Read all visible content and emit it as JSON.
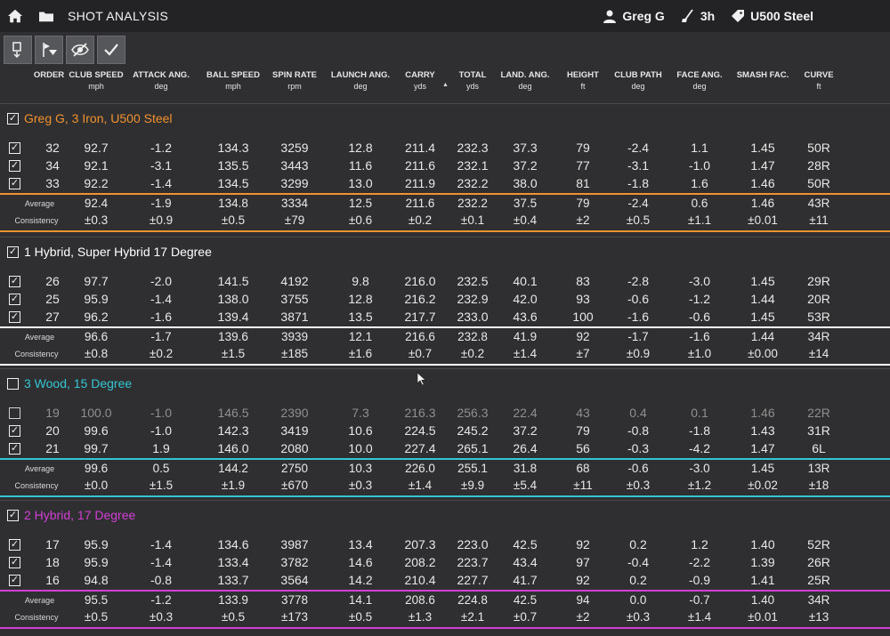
{
  "header": {
    "title": "SHOT ANALYSIS",
    "user": "Greg G",
    "club": "3h",
    "shaft": "U500 Steel"
  },
  "toolbar": {
    "icons": [
      "column-filter-icon",
      "flag-filter-icon",
      "hide-icon",
      "check-icon"
    ]
  },
  "columns": [
    {
      "label": "ORDER",
      "unit": ""
    },
    {
      "label": "CLUB SPEED",
      "unit": "mph"
    },
    {
      "label": "ATTACK ANG.",
      "unit": "deg"
    },
    {
      "label": "BALL SPEED",
      "unit": "mph"
    },
    {
      "label": "SPIN RATE",
      "unit": "rpm"
    },
    {
      "label": "LAUNCH ANG.",
      "unit": "deg"
    },
    {
      "label": "CARRY",
      "unit": "yds"
    },
    {
      "label": "TOTAL",
      "unit": "yds"
    },
    {
      "label": "LAND. ANG.",
      "unit": "deg"
    },
    {
      "label": "HEIGHT",
      "unit": "ft"
    },
    {
      "label": "CLUB PATH",
      "unit": "deg"
    },
    {
      "label": "FACE ANG.",
      "unit": "deg"
    },
    {
      "label": "SMASH FAC.",
      "unit": ""
    },
    {
      "label": "CURVE",
      "unit": "ft"
    }
  ],
  "stat_labels": {
    "average": "Average",
    "consistency": "Consistency"
  },
  "colors": {
    "background": "#2f2f31",
    "group1": "#f0922e",
    "group2": "#ffffff",
    "group3": "#35c6d3",
    "group4": "#d23fd6"
  },
  "groups": [
    {
      "title": "Greg G, 3 Iron, U500 Steel",
      "checked": true,
      "rows": [
        {
          "checked": true,
          "values": [
            "32",
            "92.7",
            "-1.2",
            "134.3",
            "3259",
            "12.8",
            "211.4",
            "232.3",
            "37.3",
            "79",
            "-2.4",
            "1.1",
            "1.45",
            "50R"
          ]
        },
        {
          "checked": true,
          "values": [
            "34",
            "92.1",
            "-3.1",
            "135.5",
            "3443",
            "11.6",
            "211.6",
            "232.1",
            "37.2",
            "77",
            "-3.1",
            "-1.0",
            "1.47",
            "28R"
          ]
        },
        {
          "checked": true,
          "values": [
            "33",
            "92.2",
            "-1.4",
            "134.5",
            "3299",
            "13.0",
            "211.9",
            "232.2",
            "38.0",
            "81",
            "-1.8",
            "1.6",
            "1.46",
            "50R"
          ]
        }
      ],
      "average": [
        "92.4",
        "-1.9",
        "134.8",
        "3334",
        "12.5",
        "211.6",
        "232.2",
        "37.5",
        "79",
        "-2.4",
        "0.6",
        "1.46",
        "43R"
      ],
      "consistency": [
        "±0.3",
        "±0.9",
        "±0.5",
        "±79",
        "±0.6",
        "±0.2",
        "±0.1",
        "±0.4",
        "±2",
        "±0.5",
        "±1.1",
        "±0.01",
        "±11"
      ]
    },
    {
      "title": "1 Hybrid, Super Hybrid 17 Degree",
      "checked": true,
      "rows": [
        {
          "checked": true,
          "values": [
            "26",
            "97.7",
            "-2.0",
            "141.5",
            "4192",
            "9.8",
            "216.0",
            "232.5",
            "40.1",
            "83",
            "-2.8",
            "-3.0",
            "1.45",
            "29R"
          ]
        },
        {
          "checked": true,
          "values": [
            "25",
            "95.9",
            "-1.4",
            "138.0",
            "3755",
            "12.8",
            "216.2",
            "232.9",
            "42.0",
            "93",
            "-0.6",
            "-1.2",
            "1.44",
            "20R"
          ]
        },
        {
          "checked": true,
          "values": [
            "27",
            "96.2",
            "-1.6",
            "139.4",
            "3871",
            "13.5",
            "217.7",
            "233.0",
            "43.6",
            "100",
            "-1.6",
            "-0.6",
            "1.45",
            "53R"
          ]
        }
      ],
      "average": [
        "96.6",
        "-1.7",
        "139.6",
        "3939",
        "12.1",
        "216.6",
        "232.8",
        "41.9",
        "92",
        "-1.7",
        "-1.6",
        "1.44",
        "34R"
      ],
      "consistency": [
        "±0.8",
        "±0.2",
        "±1.5",
        "±185",
        "±1.6",
        "±0.7",
        "±0.2",
        "±1.4",
        "±7",
        "±0.9",
        "±1.0",
        "±0.00",
        "±14"
      ]
    },
    {
      "title": "3 Wood, 15 Degree",
      "checked": false,
      "rows": [
        {
          "checked": false,
          "values": [
            "19",
            "100.0",
            "-1.0",
            "146.5",
            "2390",
            "7.3",
            "216.3",
            "256.3",
            "22.4",
            "43",
            "0.4",
            "0.1",
            "1.46",
            "22R"
          ]
        },
        {
          "checked": true,
          "values": [
            "20",
            "99.6",
            "-1.0",
            "142.3",
            "3419",
            "10.6",
            "224.5",
            "245.2",
            "37.2",
            "79",
            "-0.8",
            "-1.8",
            "1.43",
            "31R"
          ]
        },
        {
          "checked": true,
          "values": [
            "21",
            "99.7",
            "1.9",
            "146.0",
            "2080",
            "10.0",
            "227.4",
            "265.1",
            "26.4",
            "56",
            "-0.3",
            "-4.2",
            "1.47",
            "6L"
          ]
        }
      ],
      "average": [
        "99.6",
        "0.5",
        "144.2",
        "2750",
        "10.3",
        "226.0",
        "255.1",
        "31.8",
        "68",
        "-0.6",
        "-3.0",
        "1.45",
        "13R"
      ],
      "consistency": [
        "±0.0",
        "±1.5",
        "±1.9",
        "±670",
        "±0.3",
        "±1.4",
        "±9.9",
        "±5.4",
        "±11",
        "±0.3",
        "±1.2",
        "±0.02",
        "±18"
      ]
    },
    {
      "title": "2 Hybrid, 17 Degree",
      "checked": true,
      "rows": [
        {
          "checked": true,
          "values": [
            "17",
            "95.9",
            "-1.4",
            "134.6",
            "3987",
            "13.4",
            "207.3",
            "223.0",
            "42.5",
            "92",
            "0.2",
            "1.2",
            "1.40",
            "52R"
          ]
        },
        {
          "checked": true,
          "values": [
            "18",
            "95.9",
            "-1.4",
            "133.4",
            "3782",
            "14.6",
            "208.2",
            "223.7",
            "43.4",
            "97",
            "-0.4",
            "-2.2",
            "1.39",
            "26R"
          ]
        },
        {
          "checked": true,
          "values": [
            "16",
            "94.8",
            "-0.8",
            "133.7",
            "3564",
            "14.2",
            "210.4",
            "227.7",
            "41.7",
            "92",
            "0.2",
            "-0.9",
            "1.41",
            "25R"
          ]
        }
      ],
      "average": [
        "95.5",
        "-1.2",
        "133.9",
        "3778",
        "14.1",
        "208.6",
        "224.8",
        "42.5",
        "94",
        "0.0",
        "-0.7",
        "1.40",
        "34R"
      ],
      "consistency": [
        "±0.5",
        "±0.3",
        "±0.5",
        "±173",
        "±0.5",
        "±1.3",
        "±2.1",
        "±0.7",
        "±2",
        "±0.3",
        "±1.4",
        "±0.01",
        "±13"
      ]
    }
  ]
}
